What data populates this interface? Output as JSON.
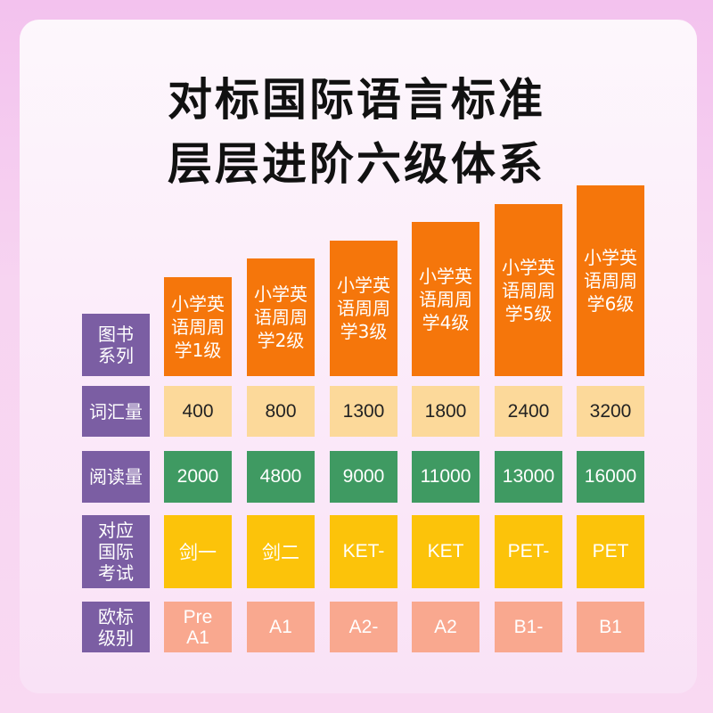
{
  "title_line1": "对标国际语言标准",
  "title_line2": "层层进阶六级体系",
  "row_labels": {
    "series": "图书系列",
    "vocab": "词汇量",
    "reading": "阅读量",
    "exam": "对应国际考试",
    "cefr": "欧标级别"
  },
  "levels": [
    {
      "series": "小学英语周周学1级",
      "vocab": "400",
      "reading": "2000",
      "exam": "剑一",
      "cefr": "Pre A1"
    },
    {
      "series": "小学英语周周学2级",
      "vocab": "800",
      "reading": "4800",
      "exam": "剑二",
      "cefr": "A1"
    },
    {
      "series": "小学英语周周学3级",
      "vocab": "1300",
      "reading": "9000",
      "exam": "KET-",
      "cefr": "A2-"
    },
    {
      "series": "小学英语周周学4级",
      "vocab": "1800",
      "reading": "11000",
      "exam": "KET",
      "cefr": "A2"
    },
    {
      "series": "小学英语周周学5级",
      "vocab": "2400",
      "reading": "13000",
      "exam": "PET-",
      "cefr": "B1-"
    },
    {
      "series": "小学英语周周学6级",
      "vocab": "3200",
      "reading": "16000",
      "exam": "PET",
      "cefr": "B1"
    }
  ],
  "colors": {
    "label_bg": "#7b5ea3",
    "series_bg": "#f5760b",
    "vocab_bg": "#fcd99a",
    "reading_bg": "#3f9a62",
    "exam_bg": "#fcc30a",
    "cefr_bg": "#f9a88f"
  }
}
